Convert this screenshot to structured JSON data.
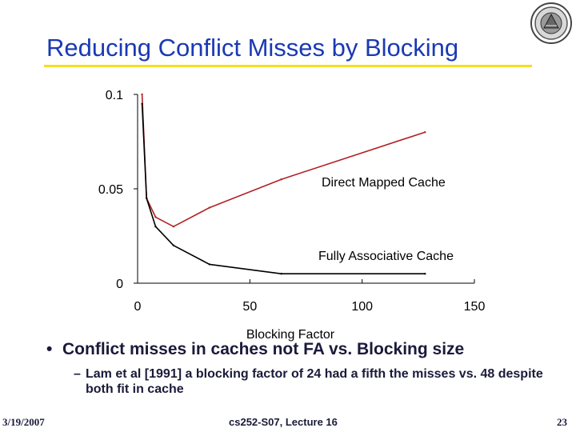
{
  "slide": {
    "title": "Reducing Conflict Misses by Blocking",
    "bullet": "Conflict misses in caches not FA vs. Blocking size",
    "sub_bullet": "Lam et al [1991] a blocking factor of 24 had a fifth the  misses vs. 48 despite both fit in cache",
    "footer_date": "3/19/2007",
    "footer_course": "cs252-S07, Lecture 16",
    "footer_page": "23"
  },
  "colors": {
    "title": "#1a39b4",
    "title_rule": "#f2e020",
    "direct_mapped": "#b22222",
    "fully_associative": "#000000"
  },
  "logo": {
    "icon": "university-seal-icon"
  },
  "chart_data": {
    "type": "line",
    "title": "",
    "xlabel": "Blocking Factor",
    "ylabel": "",
    "xlim": [
      0,
      150
    ],
    "ylim": [
      0,
      0.1
    ],
    "x_ticks": [
      "0",
      "50",
      "100",
      "150"
    ],
    "y_ticks": [
      "0",
      "0.05",
      "0.1"
    ],
    "grid": false,
    "legend": "inline labels",
    "series": [
      {
        "name": "Direct Mapped Cache",
        "color": "#b22222",
        "x": [
          2,
          4,
          8,
          16,
          32,
          64,
          128
        ],
        "y": [
          0.1,
          0.045,
          0.035,
          0.03,
          0.04,
          0.055,
          0.08
        ]
      },
      {
        "name": "Fully Associative Cache",
        "color": "#000000",
        "x": [
          2,
          4,
          8,
          16,
          32,
          64,
          128
        ],
        "y": [
          0.095,
          0.045,
          0.03,
          0.02,
          0.01,
          0.005,
          0.005
        ]
      }
    ]
  }
}
